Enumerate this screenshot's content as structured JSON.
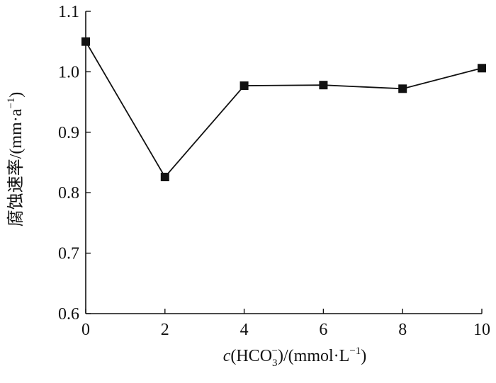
{
  "chart_data": {
    "type": "line",
    "title": "",
    "x_axis": {
      "label_italic": "c",
      "label_text": "(HCO",
      "label_sub": "3",
      "label_sup": "−",
      "label_rest": ")/(mmol·L",
      "label_rest_sup": "−1",
      "label_end": ")",
      "range": [
        0,
        10
      ],
      "ticks": [
        0,
        2,
        4,
        6,
        8,
        10
      ]
    },
    "y_axis": {
      "label_text": "腐蚀速率/(mm·a",
      "label_sup": "−1",
      "label_end": ")",
      "range": [
        0.6,
        1.1
      ],
      "ticks": [
        "0.6",
        "0.7",
        "0.8",
        "0.9",
        "1.0",
        "1.1"
      ]
    },
    "series": [
      {
        "marker": "square",
        "color": "#111111",
        "x": [
          0,
          2,
          4,
          6,
          8,
          10
        ],
        "y": [
          1.05,
          0.826,
          0.977,
          0.978,
          0.972,
          1.006
        ]
      }
    ],
    "grid": false,
    "legend": "none"
  }
}
